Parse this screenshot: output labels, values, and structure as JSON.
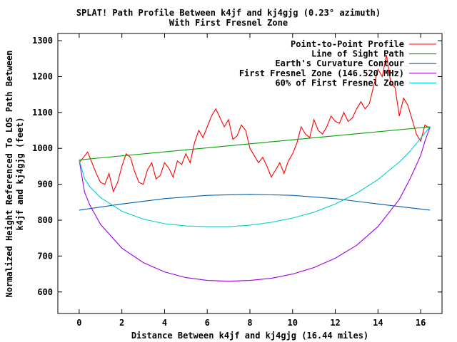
{
  "chart_data": {
    "type": "line",
    "title": "SPLAT! Path Profile Between k4jf and kj4gjg (0.23° azimuth)",
    "subtitle": "With First Fresnel Zone",
    "xlabel": "Distance Between k4jf and kj4gjg (16.44 miles)",
    "ylabel": "Normalized Height Referenced To LOS Path Between\nk4jf and kj4gjg (feet)",
    "xlim": [
      -1,
      17
    ],
    "ylim": [
      540,
      1320
    ],
    "xticks": [
      0,
      2,
      4,
      6,
      8,
      10,
      12,
      14,
      16
    ],
    "yticks": [
      600,
      700,
      800,
      900,
      1000,
      1100,
      1200,
      1300
    ],
    "legend_position": "top-right",
    "grid": false,
    "series": [
      {
        "name": "Point-to-Point Profile",
        "color": "#ff0000",
        "x": [
          0,
          0.2,
          0.4,
          0.6,
          0.8,
          1.0,
          1.2,
          1.4,
          1.6,
          1.8,
          2.0,
          2.2,
          2.4,
          2.6,
          2.8,
          3.0,
          3.2,
          3.4,
          3.6,
          3.8,
          4.0,
          4.2,
          4.4,
          4.6,
          4.8,
          5.0,
          5.2,
          5.4,
          5.6,
          5.8,
          6.0,
          6.2,
          6.4,
          6.6,
          6.8,
          7.0,
          7.2,
          7.4,
          7.6,
          7.8,
          8.0,
          8.2,
          8.4,
          8.6,
          8.8,
          9.0,
          9.2,
          9.4,
          9.6,
          9.8,
          10.0,
          10.2,
          10.4,
          10.6,
          10.8,
          11.0,
          11.2,
          11.4,
          11.6,
          11.8,
          12.0,
          12.2,
          12.4,
          12.6,
          12.8,
          13.0,
          13.2,
          13.4,
          13.6,
          13.8,
          14.0,
          14.2,
          14.4,
          14.6,
          14.8,
          15.0,
          15.2,
          15.4,
          15.6,
          15.8,
          16.0,
          16.2,
          16.44
        ],
        "y": [
          960,
          975,
          990,
          960,
          930,
          905,
          900,
          930,
          880,
          905,
          950,
          985,
          975,
          935,
          905,
          900,
          940,
          960,
          915,
          925,
          960,
          945,
          920,
          965,
          955,
          985,
          960,
          1015,
          1050,
          1030,
          1060,
          1090,
          1110,
          1085,
          1060,
          1080,
          1025,
          1035,
          1065,
          1050,
          1000,
          980,
          960,
          975,
          950,
          920,
          940,
          960,
          930,
          965,
          985,
          1015,
          1060,
          1040,
          1030,
          1080,
          1050,
          1040,
          1060,
          1090,
          1075,
          1070,
          1100,
          1075,
          1085,
          1110,
          1130,
          1110,
          1125,
          1175,
          1220,
          1200,
          1260,
          1180,
          1170,
          1090,
          1140,
          1120,
          1080,
          1040,
          1020,
          1065,
          1055
        ]
      },
      {
        "name": "Line of Sight Path",
        "color": "#00a000",
        "x": [
          0,
          16.44
        ],
        "y": [
          968,
          1060
        ]
      },
      {
        "name": "Earth's Curvature Contour",
        "color": "#0060ad",
        "x": [
          0,
          2,
          4,
          6,
          8,
          10,
          12,
          14,
          16.44
        ],
        "y": [
          828,
          845,
          860,
          869,
          872,
          869,
          860,
          845,
          828
        ]
      },
      {
        "name": "First Fresnel Zone (146.520 MHz)",
        "color": "#a000e0",
        "x": [
          0,
          0.25,
          0.5,
          1,
          2,
          3,
          4,
          5,
          6,
          7,
          8,
          9,
          10,
          11,
          12,
          13,
          14,
          15,
          15.5,
          16,
          16.2,
          16.44
        ],
        "y": [
          968,
          878,
          842,
          788,
          722,
          682,
          656,
          640,
          632,
          630,
          632,
          638,
          650,
          668,
          694,
          730,
          782,
          858,
          915,
          980,
          1020,
          1060
        ]
      },
      {
        "name": "60% of First Fresnel Zone",
        "color": "#00d0d0",
        "x": [
          0,
          0.25,
          0.5,
          1,
          2,
          3,
          4,
          5,
          6,
          7,
          8,
          9,
          10,
          11,
          12,
          13,
          14,
          15,
          15.5,
          16,
          16.2,
          16.44
        ],
        "y": [
          968,
          916,
          893,
          863,
          825,
          803,
          790,
          784,
          782,
          782,
          786,
          794,
          806,
          822,
          845,
          875,
          913,
          962,
          992,
          1028,
          1043,
          1060
        ]
      }
    ]
  }
}
